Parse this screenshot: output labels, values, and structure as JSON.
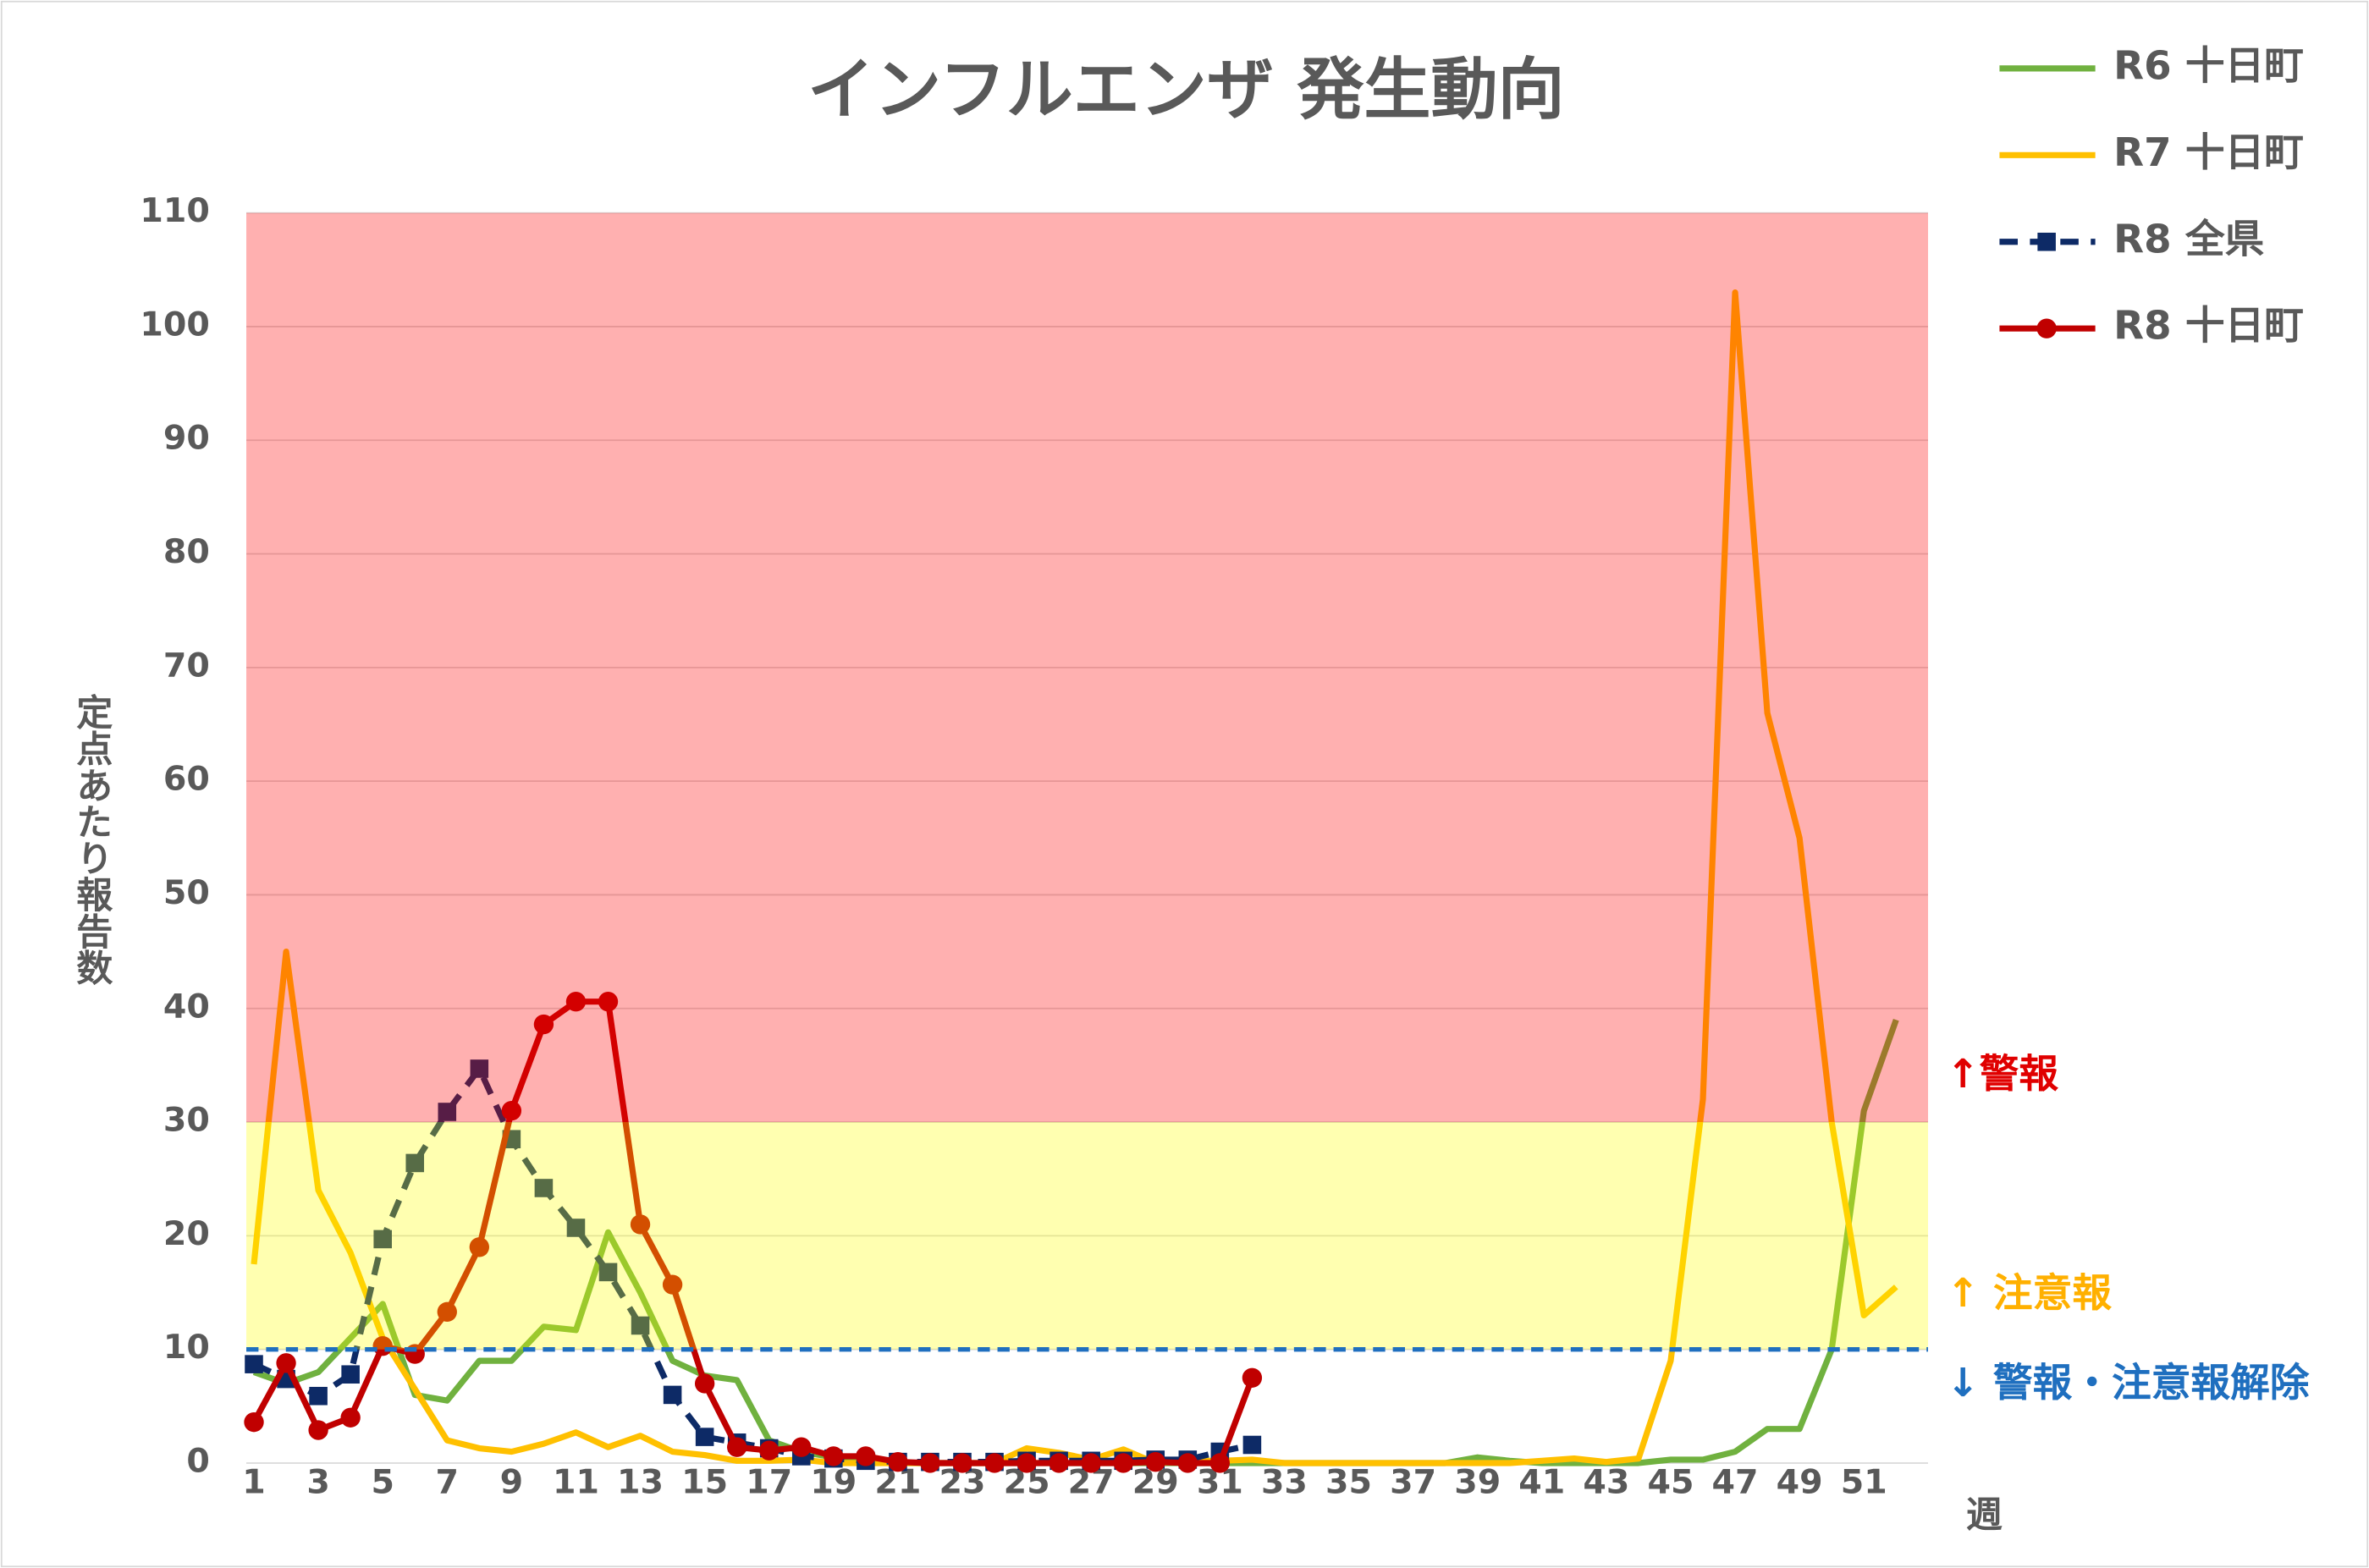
{
  "chart_data": {
    "type": "line",
    "title": "インフルエンザ 発生動向",
    "y_label": "定点あたり報告数",
    "x_label": "週",
    "categories": [
      "1",
      null,
      "3",
      null,
      "5",
      null,
      "7",
      null,
      "9",
      null,
      "11",
      null,
      "13",
      null,
      "15",
      null,
      "17",
      null,
      "19",
      null,
      "21",
      null,
      "23",
      null,
      "25",
      null,
      "27",
      null,
      "29",
      null,
      "31",
      null,
      "33",
      null,
      "35",
      null,
      "37",
      null,
      "39",
      null,
      "41",
      null,
      "43",
      null,
      "45",
      null,
      "47",
      null,
      "49",
      null,
      "51",
      null
    ],
    "ylim": [
      0,
      110
    ],
    "yticks": [
      0,
      10,
      20,
      30,
      40,
      50,
      60,
      70,
      80,
      90,
      100,
      110
    ],
    "grid": true,
    "legend": "right",
    "bands": [
      {
        "from": 30,
        "to": 110,
        "color": "#ff0000",
        "label": "↑警報",
        "label_color": "#e00000"
      },
      {
        "from": 10,
        "to": 30,
        "color": "#ffff00",
        "label": "↑ 注意報",
        "label_color": "#ffb000"
      }
    ],
    "threshold": {
      "value": 10,
      "color": "#1f6fbf",
      "label": "↓ 警報・注意報解除"
    },
    "series": [
      {
        "name": "R6 十日町",
        "color": "#70b13f",
        "dash": false,
        "marker": "none",
        "values": [
          8,
          7,
          8,
          11,
          14,
          6,
          5.5,
          9,
          9,
          12,
          11.7,
          20.3,
          15,
          9,
          7.7,
          7.3,
          2,
          1,
          0.5,
          0.3,
          0,
          0,
          0,
          0,
          0,
          0,
          0,
          0,
          0,
          0,
          0,
          0,
          0,
          0,
          0,
          0,
          0,
          0,
          0.5,
          0.2,
          0,
          0,
          0,
          0,
          0.3,
          0.3,
          1,
          3,
          3,
          10,
          31,
          39
        ]
      },
      {
        "name": "R7 十日町",
        "color": "#ffc000",
        "dash": false,
        "marker": "none",
        "values": [
          17.5,
          45,
          24,
          18.5,
          11,
          6.5,
          2,
          1.3,
          1,
          1.7,
          2.7,
          1.4,
          2.4,
          1,
          0.7,
          0.2,
          0.2,
          0.3,
          0,
          0,
          0,
          0,
          0,
          0,
          1.3,
          0.9,
          0.3,
          1.2,
          0,
          0.2,
          0.2,
          0.3,
          0,
          0,
          0,
          0,
          0,
          0,
          0,
          0,
          0.2,
          0.4,
          0.1,
          0.4,
          9,
          32,
          103,
          66,
          55,
          30,
          13,
          15.5
        ]
      },
      {
        "name": "R8 全県",
        "color": "#0d2a66",
        "dash": true,
        "marker": "square",
        "values": [
          8.7,
          7.4,
          5.9,
          7.8,
          19.7,
          26.4,
          30.9,
          34.7,
          28.5,
          24.2,
          20.7,
          16.8,
          12.1,
          6,
          2.3,
          1.8,
          1.3,
          0.6,
          0.4,
          0.2,
          0.1,
          0.1,
          0.1,
          0.1,
          0.2,
          0.2,
          0.2,
          0.2,
          0.3,
          0.3,
          1.0,
          1.6,
          null,
          null,
          null,
          null,
          null,
          null,
          null,
          null,
          null,
          null,
          null,
          null,
          null,
          null,
          null,
          null,
          null,
          null,
          null,
          null
        ]
      },
      {
        "name": "R8 十日町",
        "color": "#c00000",
        "dash": false,
        "marker": "circle",
        "values": [
          3.6,
          8.8,
          2.9,
          4,
          10.3,
          9.6,
          13.3,
          19,
          31,
          38.6,
          40.6,
          40.6,
          21,
          15.7,
          7,
          1.4,
          1.1,
          1.4,
          0.6,
          0.6,
          0.1,
          0,
          0,
          0,
          0,
          0,
          0,
          0,
          0.1,
          0,
          0,
          7.5,
          null,
          null,
          null,
          null,
          null,
          null,
          null,
          null,
          null,
          null,
          null,
          null,
          null,
          null,
          null,
          null,
          null,
          null,
          null,
          null
        ]
      }
    ]
  }
}
